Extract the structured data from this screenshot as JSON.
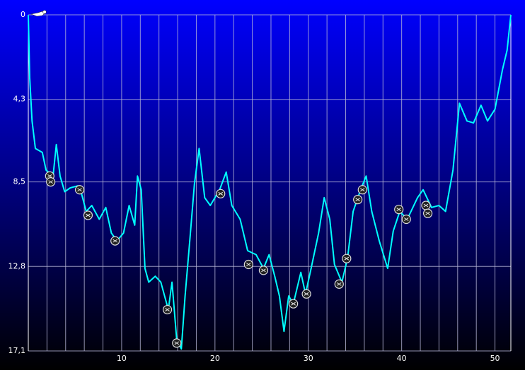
{
  "chart_data": {
    "type": "line",
    "xlim": [
      0,
      51.7
    ],
    "ylim": [
      0,
      17.1
    ],
    "y_inverted": true,
    "xticks": [
      10,
      20,
      30,
      40,
      50
    ],
    "xgrid": [
      2,
      4,
      6,
      8,
      10,
      12,
      14,
      16,
      18,
      20,
      22,
      24,
      26,
      28,
      30,
      32,
      34,
      36,
      38,
      40,
      42,
      44,
      46,
      48,
      50
    ],
    "yticks": [
      0,
      {
        "value": 4.3,
        "label": "4,3"
      },
      {
        "value": 8.5,
        "label": "8,5"
      },
      {
        "value": 12.8,
        "label": "12,8"
      },
      {
        "value": 17.1,
        "label": "17,1"
      }
    ],
    "grid": true,
    "series": [
      {
        "color": "#00ffff",
        "x": [
          0,
          0.15,
          0.4,
          0.76,
          1.5,
          1.9,
          2.65,
          3.0,
          3.4,
          3.9,
          4.5,
          5.3,
          5.7,
          6.2,
          6.8,
          7.6,
          8.3,
          8.9,
          9.5,
          10.2,
          10.8,
          11.4,
          11.7,
          12.1,
          12.5,
          12.9,
          13.6,
          14.2,
          15.0,
          15.4,
          15.9,
          16.4,
          16.8,
          17.3,
          17.8,
          18.3,
          18.9,
          19.5,
          20.5,
          21.2,
          21.8,
          22.7,
          23.5,
          24.4,
          25.2,
          25.8,
          26.4,
          26.9,
          27.4,
          27.9,
          28.4,
          29.2,
          29.7,
          30.3,
          31.1,
          31.7,
          32.3,
          32.8,
          33.6,
          34.2,
          34.8,
          35.6,
          36.2,
          36.8,
          37.6,
          38.5,
          39.1,
          39.8,
          40.6,
          41.7,
          42.3,
          43.2,
          44.0,
          44.7,
          45.5,
          46.2,
          47.0,
          47.7,
          48.5,
          49.2,
          50.0,
          50.8,
          51.3,
          51.7
        ],
        "values": [
          0,
          3.2,
          5.4,
          6.8,
          7.0,
          7.9,
          8.2,
          6.6,
          8.2,
          9.0,
          8.8,
          8.7,
          9.1,
          10.0,
          9.7,
          10.4,
          9.8,
          11.1,
          11.5,
          11.1,
          9.7,
          10.7,
          8.2,
          8.9,
          12.9,
          13.6,
          13.3,
          13.6,
          15.0,
          13.6,
          16.5,
          17.0,
          14.3,
          11.5,
          8.6,
          6.8,
          9.3,
          9.7,
          8.9,
          8.0,
          9.7,
          10.4,
          12.0,
          12.2,
          12.9,
          12.2,
          13.3,
          14.3,
          16.1,
          14.3,
          14.7,
          13.1,
          14.2,
          12.9,
          11.1,
          9.3,
          10.4,
          12.7,
          13.6,
          12.4,
          10.0,
          8.9,
          8.2,
          10.0,
          11.5,
          12.9,
          11.0,
          10.0,
          10.4,
          9.3,
          8.9,
          9.8,
          9.7,
          10.0,
          7.9,
          4.5,
          5.4,
          5.5,
          4.6,
          5.4,
          4.8,
          2.8,
          1.8,
          0
        ]
      }
    ],
    "events": {
      "x": [
        2.3,
        2.4,
        5.5,
        6.4,
        9.3,
        14.9,
        15.9,
        20.6,
        23.6,
        25.2,
        28.4,
        29.8,
        33.3,
        34.1,
        35.3,
        35.8,
        39.7,
        40.5,
        42.6,
        42.8
      ],
      "y": [
        8.2,
        8.5,
        8.9,
        10.2,
        11.5,
        15.0,
        16.7,
        9.1,
        12.7,
        13.0,
        14.7,
        14.2,
        13.7,
        12.4,
        9.4,
        8.9,
        9.9,
        10.4,
        9.7,
        10.1
      ]
    }
  }
}
